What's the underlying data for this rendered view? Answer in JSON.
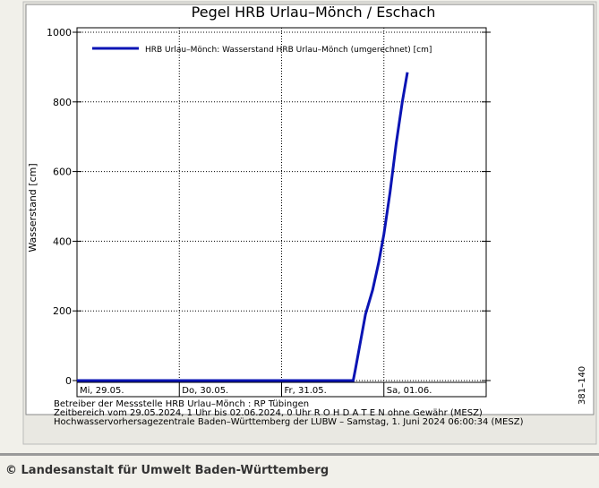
{
  "chart_data": {
    "type": "line",
    "title": "Pegel HRB Urlau–Mönch / Eschach",
    "y_label": "Wasserstand [cm]",
    "x": [
      0,
      2.7,
      2.72,
      2.77,
      2.82,
      2.89,
      2.95,
      3.0,
      3.06,
      3.12,
      3.18,
      3.23
    ],
    "series": [
      {
        "name": "HRB Urlau–Mönch: Wasserstand HRB Urlau–Mönch (umgerechnet)  [cm]",
        "color": "#0a14b4",
        "values": [
          0,
          0,
          30,
          110,
          190,
          260,
          340,
          420,
          540,
          680,
          800,
          885
        ]
      }
    ],
    "xlim": [
      0,
      4
    ],
    "xticks": [
      {
        "value": 0,
        "label": "Mi, 29.05."
      },
      {
        "value": 1,
        "label": "Do, 30.05."
      },
      {
        "value": 2,
        "label": "Fr, 31.05."
      },
      {
        "value": 3,
        "label": "Sa, 01.06."
      }
    ],
    "ylim": [
      0,
      1000
    ],
    "yticks": [
      0,
      200,
      400,
      600,
      800,
      1000
    ],
    "grid": true,
    "footnotes": [
      "Betreiber der Messstelle HRB Urlau–Mönch : RP Tübingen",
      "Zeitbereich vom 29.05.2024, 1 Uhr bis 02.06.2024, 0 Uhr    R O H D A T E N ohne Gewähr (MESZ)",
      "Hochwasservorhersagezentrale Baden–Württemberg der LUBW –  Samstag, 1. Juni 2024 06:00:34 (MESZ)"
    ],
    "side_label": "381–140"
  },
  "footer": "© Landesanstalt für Umwelt Baden-Württemberg"
}
